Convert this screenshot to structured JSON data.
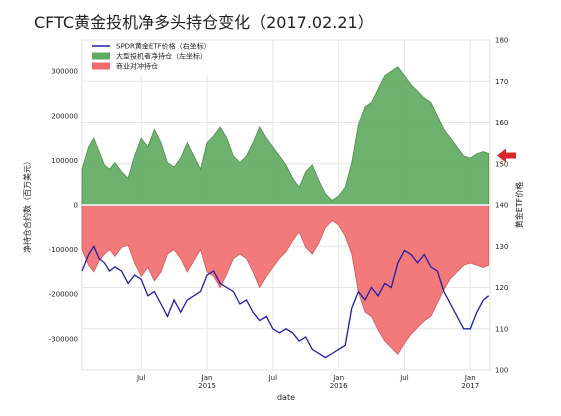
{
  "chart_data": {
    "type": "area",
    "title": "CFTC黄金投机净多头持仓变化（2017.02.21）",
    "xlabel": "date",
    "ylabel_left": "净持仓合约数（百万美元）",
    "ylabel_right": "黄金ETF价格",
    "x_ticks": [
      {
        "pos": 2014.5,
        "lines": [
          "Jul",
          ""
        ]
      },
      {
        "pos": 2015.0,
        "lines": [
          "Jan",
          "2015"
        ]
      },
      {
        "pos": 2015.5,
        "lines": [
          "Jul",
          ""
        ]
      },
      {
        "pos": 2016.0,
        "lines": [
          "Jan",
          "2016"
        ]
      },
      {
        "pos": 2016.5,
        "lines": [
          "Jul",
          ""
        ]
      },
      {
        "pos": 2017.0,
        "lines": [
          "Jan",
          "2017"
        ]
      }
    ],
    "xlim": [
      2014.05,
      2017.15
    ],
    "ylim_left": [
      -370000,
      370000
    ],
    "ylim_right": [
      100,
      180
    ],
    "left_ticks": [
      -300000,
      -200000,
      -100000,
      0,
      100000,
      200000,
      300000
    ],
    "right_ticks": [
      100,
      110,
      120,
      130,
      140,
      150,
      160,
      170,
      180
    ],
    "grid": true,
    "legend_position": "top-left",
    "colors": {
      "etf_line": "#1f1fa8",
      "large_spec_fill": "#5fa85f",
      "large_spec_line": "#4a904a",
      "commercial_fill": "#f26b6b",
      "commercial_line": "#d45a5a",
      "arrow": "#d42a2a",
      "plot_background": "#ffffff",
      "grid": "#e6e6e6"
    },
    "series": [
      {
        "name": "SPDR黄金ETF价格（右坐标）",
        "kind": "line",
        "axis": "right",
        "x": [
          2014.05,
          2014.1,
          2014.14,
          2014.18,
          2014.22,
          2014.26,
          2014.3,
          2014.35,
          2014.4,
          2014.45,
          2014.5,
          2014.55,
          2014.6,
          2014.65,
          2014.7,
          2014.75,
          2014.8,
          2014.85,
          2014.9,
          2014.95,
          2015.0,
          2015.05,
          2015.1,
          2015.15,
          2015.2,
          2015.25,
          2015.3,
          2015.35,
          2015.4,
          2015.45,
          2015.5,
          2015.55,
          2015.6,
          2015.65,
          2015.7,
          2015.75,
          2015.8,
          2015.85,
          2015.9,
          2015.95,
          2016.0,
          2016.05,
          2016.1,
          2016.15,
          2016.2,
          2016.25,
          2016.3,
          2016.35,
          2016.4,
          2016.45,
          2016.5,
          2016.55,
          2016.6,
          2016.65,
          2016.7,
          2016.75,
          2016.8,
          2016.85,
          2016.9,
          2016.95,
          2017.0,
          2017.05,
          2017.1,
          2017.14
        ],
        "y": [
          124,
          128,
          130,
          127,
          126,
          124,
          125,
          124,
          121,
          123,
          122,
          118,
          119,
          116,
          113,
          117,
          114,
          117,
          118,
          119,
          123,
          124,
          121,
          120,
          119,
          116,
          117,
          114,
          112,
          113,
          110,
          109,
          110,
          109,
          107,
          108,
          105,
          104,
          103,
          104,
          105,
          106,
          115,
          119,
          117,
          120,
          118,
          121,
          120,
          126,
          129,
          128,
          126,
          128,
          125,
          124,
          119,
          116,
          113,
          110,
          110,
          114,
          117,
          118
        ]
      },
      {
        "name": "大型投机者净持仓（左坐标）",
        "kind": "area",
        "axis": "left",
        "x": [
          2014.05,
          2014.1,
          2014.14,
          2014.18,
          2014.22,
          2014.26,
          2014.3,
          2014.35,
          2014.4,
          2014.45,
          2014.5,
          2014.55,
          2014.6,
          2014.65,
          2014.7,
          2014.75,
          2014.8,
          2014.85,
          2014.9,
          2014.95,
          2015.0,
          2015.05,
          2015.1,
          2015.15,
          2015.2,
          2015.25,
          2015.3,
          2015.35,
          2015.4,
          2015.45,
          2015.5,
          2015.55,
          2015.6,
          2015.65,
          2015.7,
          2015.75,
          2015.8,
          2015.85,
          2015.9,
          2015.95,
          2016.0,
          2016.05,
          2016.1,
          2016.15,
          2016.2,
          2016.25,
          2016.3,
          2016.35,
          2016.4,
          2016.45,
          2016.5,
          2016.55,
          2016.6,
          2016.65,
          2016.7,
          2016.75,
          2016.8,
          2016.85,
          2016.9,
          2016.95,
          2017.0,
          2017.05,
          2017.1,
          2017.14
        ],
        "y": [
          80000,
          130000,
          150000,
          120000,
          90000,
          80000,
          95000,
          75000,
          60000,
          110000,
          150000,
          130000,
          170000,
          140000,
          95000,
          85000,
          105000,
          140000,
          110000,
          80000,
          140000,
          155000,
          175000,
          150000,
          110000,
          95000,
          110000,
          140000,
          175000,
          150000,
          130000,
          110000,
          90000,
          60000,
          40000,
          75000,
          90000,
          55000,
          25000,
          10000,
          20000,
          40000,
          95000,
          180000,
          220000,
          230000,
          260000,
          290000,
          300000,
          310000,
          290000,
          270000,
          255000,
          240000,
          230000,
          200000,
          170000,
          150000,
          130000,
          110000,
          105000,
          115000,
          120000,
          115000
        ]
      },
      {
        "name": "商业对冲持仓",
        "kind": "area",
        "axis": "left",
        "x": [
          2014.05,
          2014.1,
          2014.14,
          2014.18,
          2014.22,
          2014.26,
          2014.3,
          2014.35,
          2014.4,
          2014.45,
          2014.5,
          2014.55,
          2014.6,
          2014.65,
          2014.7,
          2014.75,
          2014.8,
          2014.85,
          2014.9,
          2014.95,
          2015.0,
          2015.05,
          2015.1,
          2015.15,
          2015.2,
          2015.25,
          2015.3,
          2015.35,
          2015.4,
          2015.45,
          2015.5,
          2015.55,
          2015.6,
          2015.65,
          2015.7,
          2015.75,
          2015.8,
          2015.85,
          2015.9,
          2015.95,
          2016.0,
          2016.05,
          2016.1,
          2016.15,
          2016.2,
          2016.25,
          2016.3,
          2016.35,
          2016.4,
          2016.45,
          2016.5,
          2016.55,
          2016.6,
          2016.65,
          2016.7,
          2016.75,
          2016.8,
          2016.85,
          2016.9,
          2016.95,
          2017.0,
          2017.05,
          2017.1,
          2017.14
        ],
        "y": [
          -100000,
          -135000,
          -150000,
          -125000,
          -110000,
          -100000,
          -115000,
          -95000,
          -90000,
          -130000,
          -160000,
          -140000,
          -170000,
          -150000,
          -110000,
          -100000,
          -120000,
          -150000,
          -125000,
          -100000,
          -150000,
          -160000,
          -185000,
          -155000,
          -120000,
          -110000,
          -120000,
          -150000,
          -185000,
          -160000,
          -140000,
          -120000,
          -105000,
          -80000,
          -60000,
          -95000,
          -110000,
          -85000,
          -50000,
          -35000,
          -45000,
          -70000,
          -110000,
          -195000,
          -240000,
          -250000,
          -280000,
          -305000,
          -320000,
          -335000,
          -310000,
          -290000,
          -275000,
          -260000,
          -250000,
          -220000,
          -190000,
          -165000,
          -150000,
          -135000,
          -130000,
          -135000,
          -140000,
          -135000
        ]
      }
    ]
  }
}
